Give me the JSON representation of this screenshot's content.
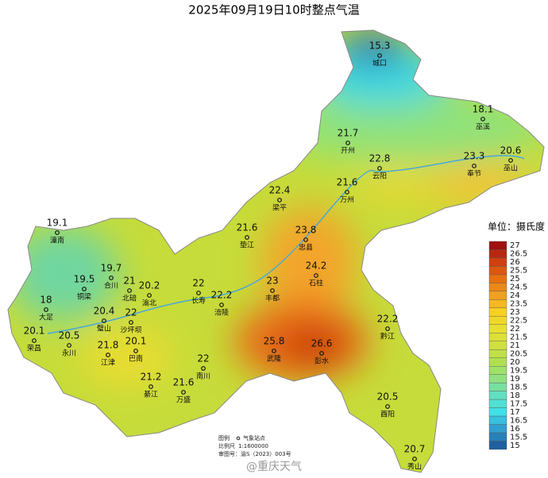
{
  "title": "2025年09月19日10时整点气温",
  "unit": "单位：摄氏度",
  "stations": [
    {
      "name": "城口",
      "value": 15.3
    },
    {
      "name": "巫溪",
      "value": 18.1
    },
    {
      "name": "开州",
      "value": 21.7
    },
    {
      "name": "云阳",
      "value": 22.8
    },
    {
      "name": "奉节",
      "value": 23.3
    },
    {
      "name": "巫山",
      "value": 20.6
    },
    {
      "name": "万州",
      "value": 21.6
    },
    {
      "name": "梁平",
      "value": 22.4
    },
    {
      "name": "垫江",
      "value": 21.6
    },
    {
      "name": "忠县",
      "value": 23.8
    },
    {
      "name": "潼南",
      "value": 19.1
    },
    {
      "name": "合川",
      "value": 19.7
    },
    {
      "name": "铜梁",
      "value": 19.5
    },
    {
      "name": "北碚",
      "value": 21
    },
    {
      "name": "渝北",
      "value": 20.2
    },
    {
      "name": "长寿",
      "value": 22
    },
    {
      "name": "涪陵",
      "value": 22.2
    },
    {
      "name": "丰都",
      "value": 23
    },
    {
      "name": "石柱",
      "value": 24.2
    },
    {
      "name": "大足",
      "value": 18
    },
    {
      "name": "璧山",
      "value": 20.4
    },
    {
      "name": "沙坪坝",
      "value": 22
    },
    {
      "name": "荣昌",
      "value": 20.1
    },
    {
      "name": "永川",
      "value": 20.5
    },
    {
      "name": "江津",
      "value": 21.8
    },
    {
      "name": "巴南",
      "value": 20.1
    },
    {
      "name": "武隆",
      "value": 25.8
    },
    {
      "name": "彭水",
      "value": 26.6
    },
    {
      "name": "黔江",
      "value": 22.2
    },
    {
      "name": "南川",
      "value": 22
    },
    {
      "name": "綦江",
      "value": 21.2
    },
    {
      "name": "万盛",
      "value": 21.6
    },
    {
      "name": "酉阳",
      "value": 20.5
    },
    {
      "name": "秀山",
      "value": 20.7
    }
  ],
  "legend": {
    "levels": [
      27,
      26.5,
      26,
      25.5,
      25,
      24.5,
      24,
      23.5,
      23,
      22.5,
      22,
      21.5,
      21,
      20.5,
      20,
      19.5,
      19,
      18.5,
      18,
      17.5,
      17,
      16.5,
      16,
      15.5,
      15
    ]
  },
  "footer": {
    "legend_label": "图例",
    "station_label": "气象站点",
    "scale_label": "比例尺",
    "scale": "1:1600000",
    "approval": "审图号：渝S（2023）003号"
  },
  "watermark": "@重庆天气"
}
